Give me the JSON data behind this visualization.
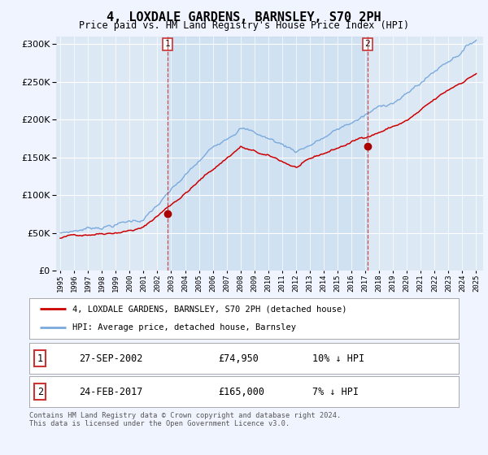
{
  "title": "4, LOXDALE GARDENS, BARNSLEY, S70 2PH",
  "subtitle": "Price paid vs. HM Land Registry's House Price Index (HPI)",
  "title_fontsize": 11,
  "subtitle_fontsize": 8.5,
  "background_color": "#f0f4ff",
  "plot_bg_color": "#dde8f5",
  "shade_between_color": "#ccdcee",
  "ylim": [
    0,
    310000
  ],
  "yticks": [
    0,
    50000,
    100000,
    150000,
    200000,
    250000,
    300000
  ],
  "x_start_year": 1995,
  "x_end_year": 2025,
  "purchase1_year": 2002.75,
  "purchase1_price": 74950,
  "purchase1_date": "27-SEP-2002",
  "purchase2_year": 2017.15,
  "purchase2_price": 165000,
  "purchase2_date": "24-FEB-2017",
  "purchase1_hpi_pct": "10%",
  "purchase2_hpi_pct": "7%",
  "legend_property": "4, LOXDALE GARDENS, BARNSLEY, S70 2PH (detached house)",
  "legend_hpi": "HPI: Average price, detached house, Barnsley",
  "footer": "Contains HM Land Registry data © Crown copyright and database right 2024.\nThis data is licensed under the Open Government Licence v3.0.",
  "line_color_property": "#cc0000",
  "line_color_hpi": "#7aaadd",
  "marker_color": "#aa0000",
  "vline_color": "#cc3333"
}
